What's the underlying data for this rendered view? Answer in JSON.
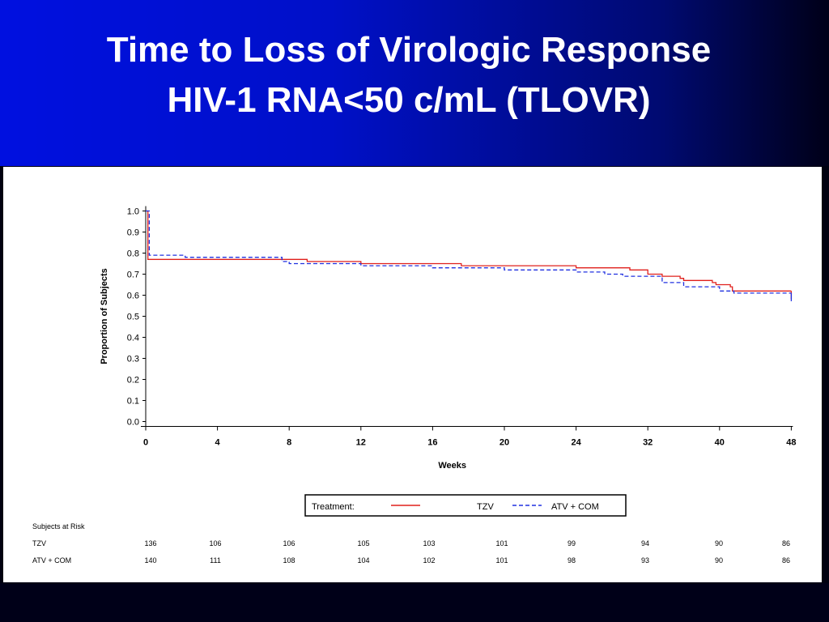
{
  "slide": {
    "title_line1": "Time to Loss of Virologic Response",
    "title_line2": "HIV-1 RNA<50 c/mL (TLOVR)",
    "header_color": "#0010d8",
    "background_color": "#000018"
  },
  "chart_data": {
    "type": "line",
    "title": "",
    "xlabel": "Weeks",
    "ylabel": "Proportion of Subjects",
    "x_ticks": [
      "0",
      "4",
      "8",
      "12",
      "16",
      "20",
      "24",
      "32",
      "40",
      "48"
    ],
    "y_ticks": [
      "0.0",
      "0.1",
      "0.2",
      "0.3",
      "0.4",
      "0.5",
      "0.6",
      "0.7",
      "0.8",
      "0.9",
      "1.0"
    ],
    "ylim": [
      0,
      1
    ],
    "x_axis_note": "ticks are evenly spaced; x values below are tick positions (0-9)",
    "grid": false,
    "legend": {
      "title": "Treatment:",
      "position": "bottom-center",
      "entries": [
        {
          "label": "TZV",
          "color": "#e0201c",
          "style": "solid"
        },
        {
          "label": "ATV  +  COM",
          "color": "#2030e0",
          "style": "dashed"
        }
      ]
    },
    "series": [
      {
        "name": "TZV",
        "color": "#e0201c",
        "dash": "solid",
        "x": [
          0,
          0.03,
          0.03,
          2.0,
          2.0,
          2.25,
          2.25,
          3.0,
          3.0,
          4.4,
          4.4,
          6.0,
          6.0,
          6.75,
          6.75,
          7.0,
          7.0,
          7.2,
          7.2,
          7.45,
          7.45,
          7.5,
          7.5,
          7.9,
          7.9,
          7.95,
          7.95,
          8.15,
          8.15,
          8.18,
          8.18,
          9.0
        ],
        "y": [
          1.0,
          1.0,
          0.77,
          0.77,
          0.77,
          0.77,
          0.76,
          0.76,
          0.75,
          0.75,
          0.74,
          0.74,
          0.73,
          0.73,
          0.72,
          0.72,
          0.7,
          0.7,
          0.69,
          0.69,
          0.68,
          0.68,
          0.67,
          0.67,
          0.66,
          0.66,
          0.65,
          0.65,
          0.64,
          0.64,
          0.62,
          0.62
        ]
      },
      {
        "name": "ATV  +  COM",
        "color": "#2030e0",
        "dash": "dashed",
        "x": [
          0,
          0.05,
          0.05,
          0.55,
          0.55,
          1.9,
          1.9,
          2.0,
          2.0,
          3.0,
          3.0,
          4.0,
          4.0,
          5.0,
          5.0,
          6.0,
          6.0,
          6.4,
          6.4,
          6.65,
          6.65,
          7.2,
          7.2,
          7.5,
          7.5,
          8.0,
          8.0,
          8.2,
          8.2,
          9.0
        ],
        "y": [
          1.0,
          1.0,
          0.79,
          0.79,
          0.78,
          0.78,
          0.76,
          0.76,
          0.75,
          0.75,
          0.74,
          0.74,
          0.73,
          0.73,
          0.72,
          0.72,
          0.71,
          0.71,
          0.7,
          0.7,
          0.69,
          0.69,
          0.66,
          0.66,
          0.64,
          0.64,
          0.62,
          0.62,
          0.61,
          0.61
        ]
      }
    ],
    "at_risk": {
      "header": "Subjects at Risk",
      "rows": [
        {
          "label": "TZV",
          "values": [
            "136",
            "106",
            "106",
            "105",
            "103",
            "101",
            "99",
            "94",
            "90",
            "86"
          ]
        },
        {
          "label": "ATV  +  COM",
          "values": [
            "140",
            "111",
            "108",
            "104",
            "102",
            "101",
            "98",
            "93",
            "90",
            "86"
          ]
        }
      ]
    }
  }
}
